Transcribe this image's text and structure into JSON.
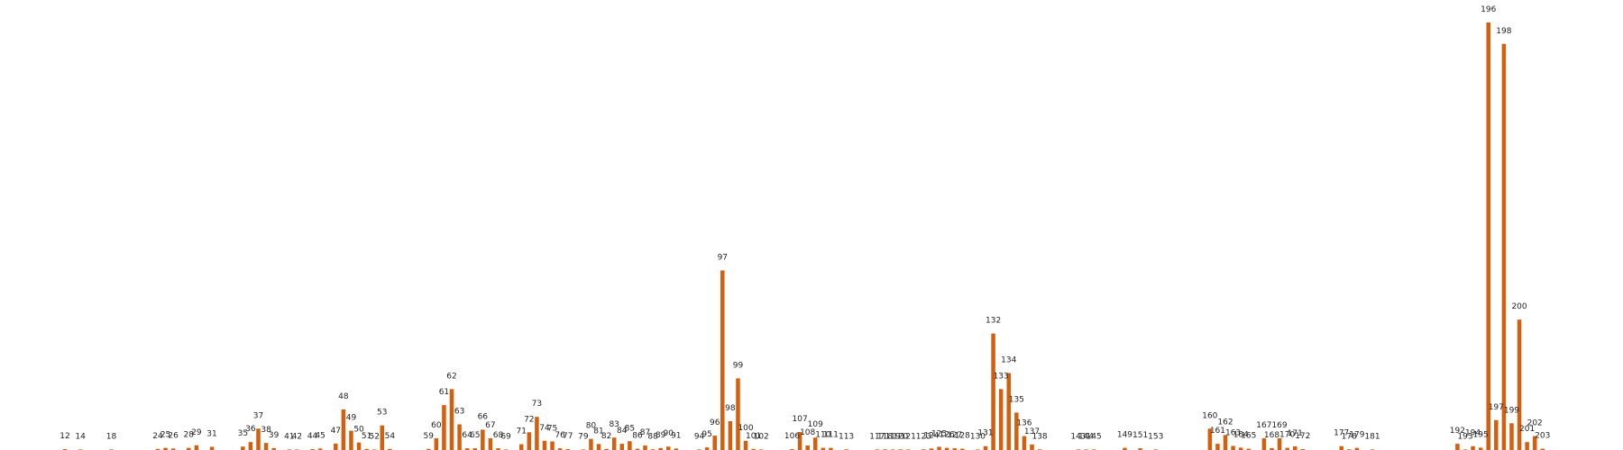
{
  "chart_data": {
    "type": "bar",
    "title": "",
    "xlabel": "",
    "ylabel": "",
    "bar_color": "#d45f0f",
    "background": "#ffffff",
    "grid": false,
    "legend": "none",
    "ylim": [
      0,
      200
    ],
    "xlim": [
      0,
      210
    ],
    "points": [
      {
        "x": 12,
        "label": "12",
        "value": 0.4
      },
      {
        "x": 14,
        "label": "14",
        "value": 0.1
      },
      {
        "x": 18,
        "label": "18",
        "value": 0.1
      },
      {
        "x": 24,
        "label": "24",
        "value": 0.5
      },
      {
        "x": 25,
        "label": "25",
        "value": 1
      },
      {
        "x": 26,
        "label": "26",
        "value": 0.7
      },
      {
        "x": 28,
        "label": "28",
        "value": 1
      },
      {
        "x": 29,
        "label": "29",
        "value": 2.2
      },
      {
        "x": 31,
        "label": "31",
        "value": 1.5
      },
      {
        "x": 35,
        "label": "35",
        "value": 1.6
      },
      {
        "x": 36,
        "label": "36",
        "value": 3.7
      },
      {
        "x": 37,
        "label": "37",
        "value": 10
      },
      {
        "x": 38,
        "label": "38",
        "value": 3.3
      },
      {
        "x": 39,
        "label": "39",
        "value": 0.9
      },
      {
        "x": 41,
        "label": "41",
        "value": 0.2
      },
      {
        "x": 42,
        "label": "42",
        "value": 0.2
      },
      {
        "x": 44,
        "label": "44",
        "value": 0.4
      },
      {
        "x": 45,
        "label": "45",
        "value": 0.7
      },
      {
        "x": 47,
        "label": "47",
        "value": 3
      },
      {
        "x": 48,
        "label": "48",
        "value": 19
      },
      {
        "x": 49,
        "label": "49",
        "value": 9
      },
      {
        "x": 50,
        "label": "50",
        "value": 3.5
      },
      {
        "x": 51,
        "label": "51",
        "value": 0.5
      },
      {
        "x": 52,
        "label": "52",
        "value": 0.2
      },
      {
        "x": 53,
        "label": "53",
        "value": 11.5
      },
      {
        "x": 54,
        "label": "54",
        "value": 0.5
      },
      {
        "x": 59,
        "label": "59",
        "value": 0.5
      },
      {
        "x": 60,
        "label": "60",
        "value": 5.5
      },
      {
        "x": 61,
        "label": "61",
        "value": 21
      },
      {
        "x": 62,
        "label": "62",
        "value": 28.5
      },
      {
        "x": 63,
        "label": "63",
        "value": 12
      },
      {
        "x": 64,
        "label": "64",
        "value": 0.8
      },
      {
        "x": 65,
        "label": "65",
        "value": 0.8
      },
      {
        "x": 66,
        "label": "66",
        "value": 9.5
      },
      {
        "x": 67,
        "label": "67",
        "value": 5.5
      },
      {
        "x": 68,
        "label": "68",
        "value": 0.8
      },
      {
        "x": 69,
        "label": "69",
        "value": 0.2
      },
      {
        "x": 71,
        "label": "71",
        "value": 2.7
      },
      {
        "x": 72,
        "label": "72",
        "value": 8.3
      },
      {
        "x": 73,
        "label": "73",
        "value": 15.5
      },
      {
        "x": 74,
        "label": "74",
        "value": 4.3
      },
      {
        "x": 75,
        "label": "75",
        "value": 4
      },
      {
        "x": 76,
        "label": "76",
        "value": 0.8
      },
      {
        "x": 77,
        "label": "77",
        "value": 0.4
      },
      {
        "x": 79,
        "label": "79",
        "value": 0.2
      },
      {
        "x": 80,
        "label": "80",
        "value": 5.2
      },
      {
        "x": 81,
        "label": "81",
        "value": 2.8
      },
      {
        "x": 82,
        "label": "82",
        "value": 0.5
      },
      {
        "x": 83,
        "label": "83",
        "value": 5.8
      },
      {
        "x": 84,
        "label": "84",
        "value": 2.9
      },
      {
        "x": 85,
        "label": "85",
        "value": 4.1
      },
      {
        "x": 86,
        "label": "86",
        "value": 0.6
      },
      {
        "x": 87,
        "label": "87",
        "value": 2.1
      },
      {
        "x": 88,
        "label": "88",
        "value": 0.3
      },
      {
        "x": 89,
        "label": "89",
        "value": 0.9
      },
      {
        "x": 90,
        "label": "90",
        "value": 1.6
      },
      {
        "x": 91,
        "label": "91",
        "value": 0.7
      },
      {
        "x": 94,
        "label": "94",
        "value": 0.2
      },
      {
        "x": 95,
        "label": "95",
        "value": 1.2
      },
      {
        "x": 96,
        "label": "96",
        "value": 6.7
      },
      {
        "x": 97,
        "label": "97",
        "value": 84
      },
      {
        "x": 98,
        "label": "98",
        "value": 13.5
      },
      {
        "x": 99,
        "label": "99",
        "value": 33.5
      },
      {
        "x": 100,
        "label": "100",
        "value": 4.3
      },
      {
        "x": 101,
        "label": "101",
        "value": 0.5
      },
      {
        "x": 102,
        "label": "102",
        "value": 0.2
      },
      {
        "x": 106,
        "label": "106",
        "value": 0.4
      },
      {
        "x": 107,
        "label": "107",
        "value": 8.4
      },
      {
        "x": 108,
        "label": "108",
        "value": 2.1
      },
      {
        "x": 109,
        "label": "109",
        "value": 5.8
      },
      {
        "x": 110,
        "label": "110",
        "value": 1
      },
      {
        "x": 111,
        "label": "111",
        "value": 1
      },
      {
        "x": 113,
        "label": "113",
        "value": 0.3
      },
      {
        "x": 117,
        "label": "117",
        "value": 0.2
      },
      {
        "x": 118,
        "label": "118",
        "value": 0.3
      },
      {
        "x": 119,
        "label": "119",
        "value": 0.2
      },
      {
        "x": 120,
        "label": "120",
        "value": 0.3
      },
      {
        "x": 121,
        "label": "121",
        "value": 0.2
      },
      {
        "x": 123,
        "label": "123",
        "value": 0.3
      },
      {
        "x": 124,
        "label": "124",
        "value": 0.7
      },
      {
        "x": 125,
        "label": "125",
        "value": 1.5
      },
      {
        "x": 126,
        "label": "126",
        "value": 1
      },
      {
        "x": 127,
        "label": "127",
        "value": 0.8
      },
      {
        "x": 128,
        "label": "128",
        "value": 0.6
      },
      {
        "x": 130,
        "label": "130",
        "value": 0.2
      },
      {
        "x": 131,
        "label": "131",
        "value": 1.8
      },
      {
        "x": 132,
        "label": "132",
        "value": 54.5
      },
      {
        "x": 133,
        "label": "133",
        "value": 28.5
      },
      {
        "x": 134,
        "label": "134",
        "value": 36
      },
      {
        "x": 135,
        "label": "135",
        "value": 17.5
      },
      {
        "x": 136,
        "label": "136",
        "value": 6.5
      },
      {
        "x": 137,
        "label": "137",
        "value": 2.6
      },
      {
        "x": 138,
        "label": "138",
        "value": 0.3
      },
      {
        "x": 143,
        "label": "143",
        "value": 0.2
      },
      {
        "x": 144,
        "label": "144",
        "value": 0.2
      },
      {
        "x": 145,
        "label": "145",
        "value": 0.2
      },
      {
        "x": 149,
        "label": "149",
        "value": 1
      },
      {
        "x": 151,
        "label": "151",
        "value": 0.8
      },
      {
        "x": 153,
        "label": "153",
        "value": 0.2
      },
      {
        "x": 160,
        "label": "160",
        "value": 10
      },
      {
        "x": 161,
        "label": "161",
        "value": 2.9
      },
      {
        "x": 162,
        "label": "162",
        "value": 7
      },
      {
        "x": 163,
        "label": "163",
        "value": 1.9
      },
      {
        "x": 164,
        "label": "164",
        "value": 1.1
      },
      {
        "x": 165,
        "label": "165",
        "value": 0.6
      },
      {
        "x": 167,
        "label": "167",
        "value": 5.5
      },
      {
        "x": 168,
        "label": "168",
        "value": 0.9
      },
      {
        "x": 169,
        "label": "169",
        "value": 5.5
      },
      {
        "x": 170,
        "label": "170",
        "value": 1
      },
      {
        "x": 171,
        "label": "171",
        "value": 1.7
      },
      {
        "x": 172,
        "label": "172",
        "value": 0.4
      },
      {
        "x": 177,
        "label": "177",
        "value": 1.8
      },
      {
        "x": 178,
        "label": "178",
        "value": 0.3
      },
      {
        "x": 179,
        "label": "179",
        "value": 1
      },
      {
        "x": 181,
        "label": "181",
        "value": 0.2
      },
      {
        "x": 192,
        "label": "192",
        "value": 2.9
      },
      {
        "x": 193,
        "label": "193",
        "value": 0.2
      },
      {
        "x": 194,
        "label": "194",
        "value": 1.8
      },
      {
        "x": 195,
        "label": "195",
        "value": 1.1
      },
      {
        "x": 196,
        "label": "196",
        "value": 200
      },
      {
        "x": 197,
        "label": "197",
        "value": 14
      },
      {
        "x": 198,
        "label": "198",
        "value": 190
      },
      {
        "x": 199,
        "label": "199",
        "value": 12.5
      },
      {
        "x": 200,
        "label": "200",
        "value": 61
      },
      {
        "x": 201,
        "label": "201",
        "value": 3.7
      },
      {
        "x": 202,
        "label": "202",
        "value": 6.5
      },
      {
        "x": 203,
        "label": "203",
        "value": 0.6
      }
    ]
  }
}
